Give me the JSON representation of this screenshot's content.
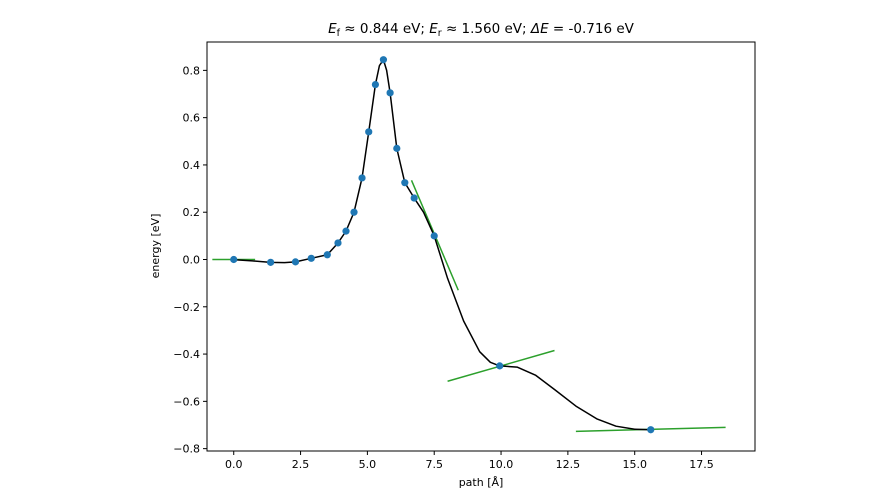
{
  "chart_data": {
    "type": "line",
    "title": {
      "parts": [
        {
          "text": "E",
          "italic": true
        },
        {
          "text": "f",
          "sub": true
        },
        {
          "text": " ≈  0.844 eV; "
        },
        {
          "text": "E",
          "italic": true
        },
        {
          "text": "r",
          "sub": true
        },
        {
          "text": " ≈  1.560 eV; "
        },
        {
          "text": "ΔE",
          "italic": true
        },
        {
          "text": " = -0.716 eV"
        }
      ]
    },
    "xlabel": "path [Å]",
    "ylabel": "energy [eV]",
    "xlim": [
      -1.0,
      19.5
    ],
    "ylim": [
      -0.81,
      0.92
    ],
    "xticks": [
      0.0,
      2.5,
      5.0,
      7.5,
      10.0,
      12.5,
      15.0,
      17.5
    ],
    "xtick_labels": [
      "0.0",
      "2.5",
      "5.0",
      "7.5",
      "10.0",
      "12.5",
      "15.0",
      "17.5"
    ],
    "yticks": [
      -0.8,
      -0.6,
      -0.4,
      -0.2,
      0.0,
      0.2,
      0.4,
      0.6,
      0.8
    ],
    "ytick_labels": [
      "−0.8",
      "−0.6",
      "−0.4",
      "−0.2",
      "0.0",
      "0.2",
      "0.4",
      "0.6",
      "0.8"
    ],
    "grid": false,
    "legend": "none",
    "colors": {
      "curve": "#000000",
      "points": "#1f77b4",
      "tangents": "#2ca02c",
      "frame": "#000000"
    },
    "images": {
      "x": [
        0.0,
        1.38,
        2.31,
        2.9,
        3.5,
        3.9,
        4.2,
        4.5,
        4.8,
        5.05,
        5.3,
        5.6,
        5.85,
        6.1,
        6.4,
        6.75,
        7.5,
        9.95,
        15.6
      ],
      "y": [
        0.0,
        -0.012,
        -0.01,
        0.005,
        0.02,
        0.07,
        0.12,
        0.2,
        0.345,
        0.54,
        0.74,
        0.845,
        0.705,
        0.47,
        0.325,
        0.26,
        0.1,
        -0.45,
        -0.72
      ]
    },
    "curve": {
      "x": [
        -0.1,
        0.7,
        1.38,
        1.9,
        2.31,
        2.9,
        3.5,
        3.9,
        4.2,
        4.5,
        4.8,
        5.05,
        5.3,
        5.45,
        5.6,
        5.72,
        5.85,
        6.1,
        6.4,
        6.75,
        7.1,
        7.5,
        8.0,
        8.6,
        9.2,
        9.6,
        9.95,
        10.6,
        11.3,
        12.0,
        12.8,
        13.6,
        14.3,
        15.0,
        15.6
      ],
      "y": [
        0.0,
        -0.006,
        -0.012,
        -0.013,
        -0.01,
        0.005,
        0.02,
        0.07,
        0.12,
        0.2,
        0.345,
        0.54,
        0.74,
        0.82,
        0.845,
        0.8,
        0.705,
        0.47,
        0.325,
        0.26,
        0.2,
        0.1,
        -0.08,
        -0.26,
        -0.39,
        -0.435,
        -0.45,
        -0.455,
        -0.49,
        -0.55,
        -0.62,
        -0.675,
        -0.705,
        -0.718,
        -0.72
      ]
    },
    "tangents": [
      {
        "x": [
          -0.8,
          0.8
        ],
        "y": [
          0.0,
          0.0
        ]
      },
      {
        "x": [
          6.65,
          8.4
        ],
        "y": [
          0.335,
          -0.13
        ]
      },
      {
        "x": [
          8.0,
          12.0
        ],
        "y": [
          -0.515,
          -0.385
        ]
      },
      {
        "x": [
          12.8,
          18.4
        ],
        "y": [
          -0.727,
          -0.71
        ]
      }
    ]
  }
}
